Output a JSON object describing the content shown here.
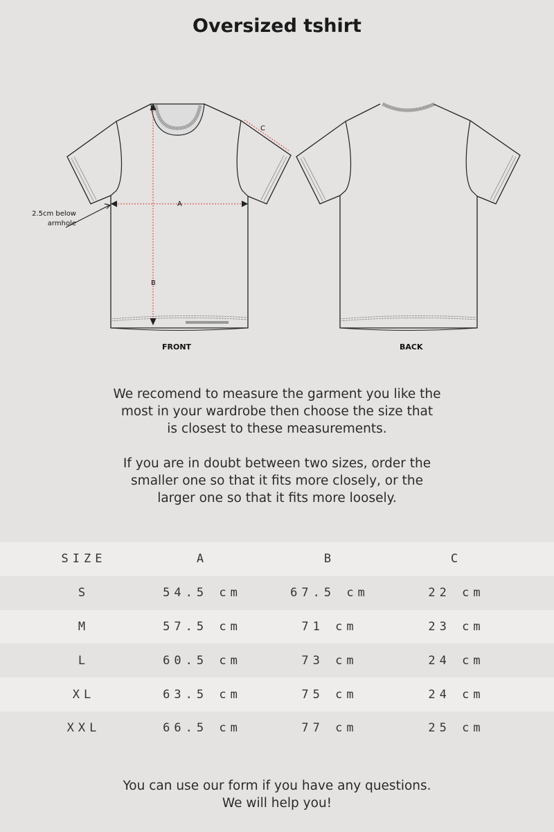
{
  "title": "Oversized tshirt",
  "diagram": {
    "front_label": "FRONT",
    "back_label": "BACK",
    "measure_a": "A",
    "measure_b": "B",
    "measure_c": "C",
    "note": "2.5cm below armhole",
    "measure_color": "#e03a3a"
  },
  "intro": {
    "paragraph1": [
      "We recomend to measure the garment you like the",
      "most in your wardrobe then choose the size that",
      "is closest to these measurements."
    ],
    "paragraph2": [
      "If you are in doubt between two sizes, order the",
      "smaller one so that it fits more closely, or the",
      "larger one so that it fits more loosely."
    ]
  },
  "size_table": {
    "headers": [
      "SIZE",
      "A",
      "B",
      "C"
    ],
    "rows": [
      [
        "S",
        "54.5 cm",
        "67.5 cm",
        "22 cm"
      ],
      [
        "M",
        "57.5 cm",
        "71 cm",
        "23 cm"
      ],
      [
        "L",
        "60.5 cm",
        "73 cm",
        "24 cm"
      ],
      [
        "XL",
        "63.5 cm",
        "75 cm",
        "24 cm"
      ],
      [
        "XXL",
        "66.5 cm",
        "77 cm",
        "25 cm"
      ]
    ]
  },
  "footer": [
    "You can use our form if you have any questions.",
    "We will help you!"
  ]
}
